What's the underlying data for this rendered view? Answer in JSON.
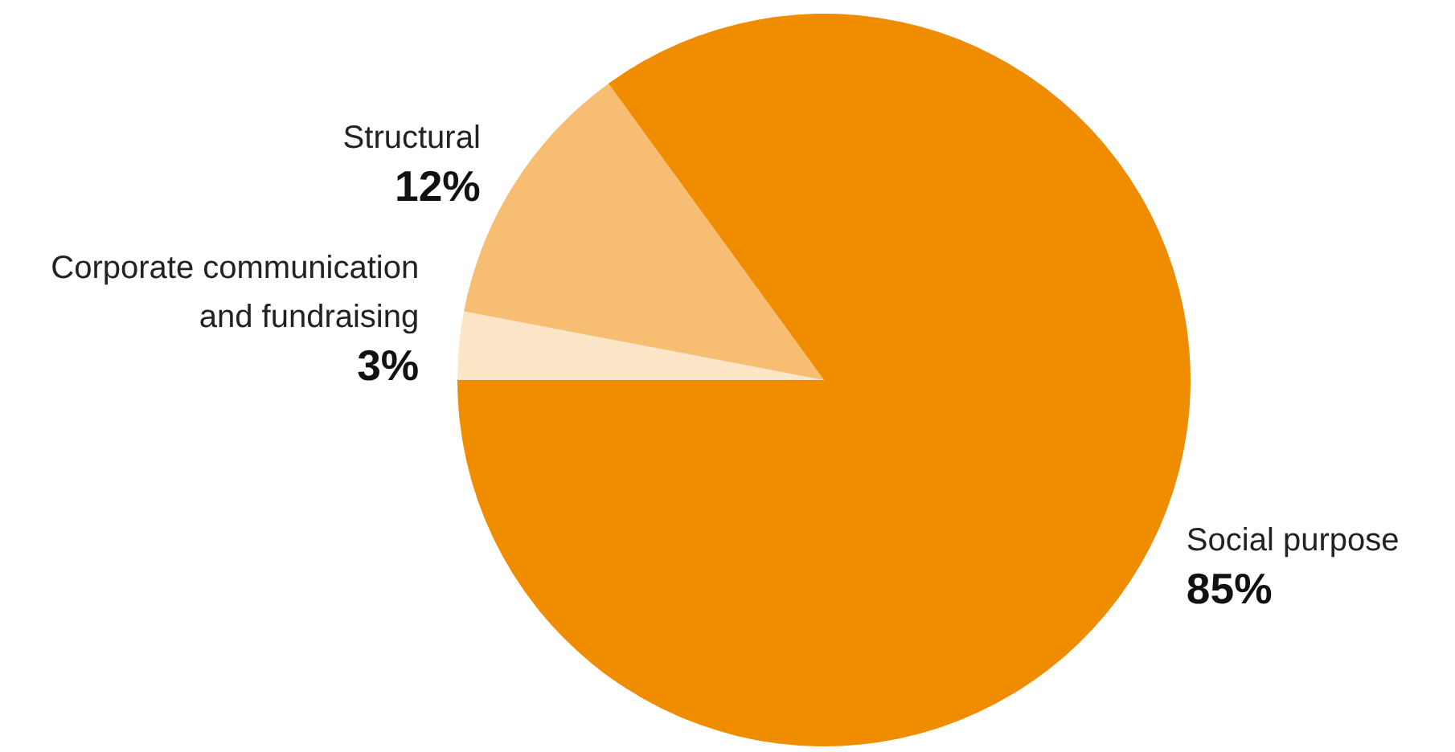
{
  "chart_data": {
    "type": "pie",
    "categories": [
      "Corporate communication\nand fundraising",
      "Structural",
      "Social purpose"
    ],
    "values": [
      3,
      12,
      85
    ],
    "colors": [
      "#fde5c8",
      "#f7bd73",
      "#f08c00"
    ],
    "value_labels": [
      "3%",
      "12%",
      "85%"
    ]
  }
}
